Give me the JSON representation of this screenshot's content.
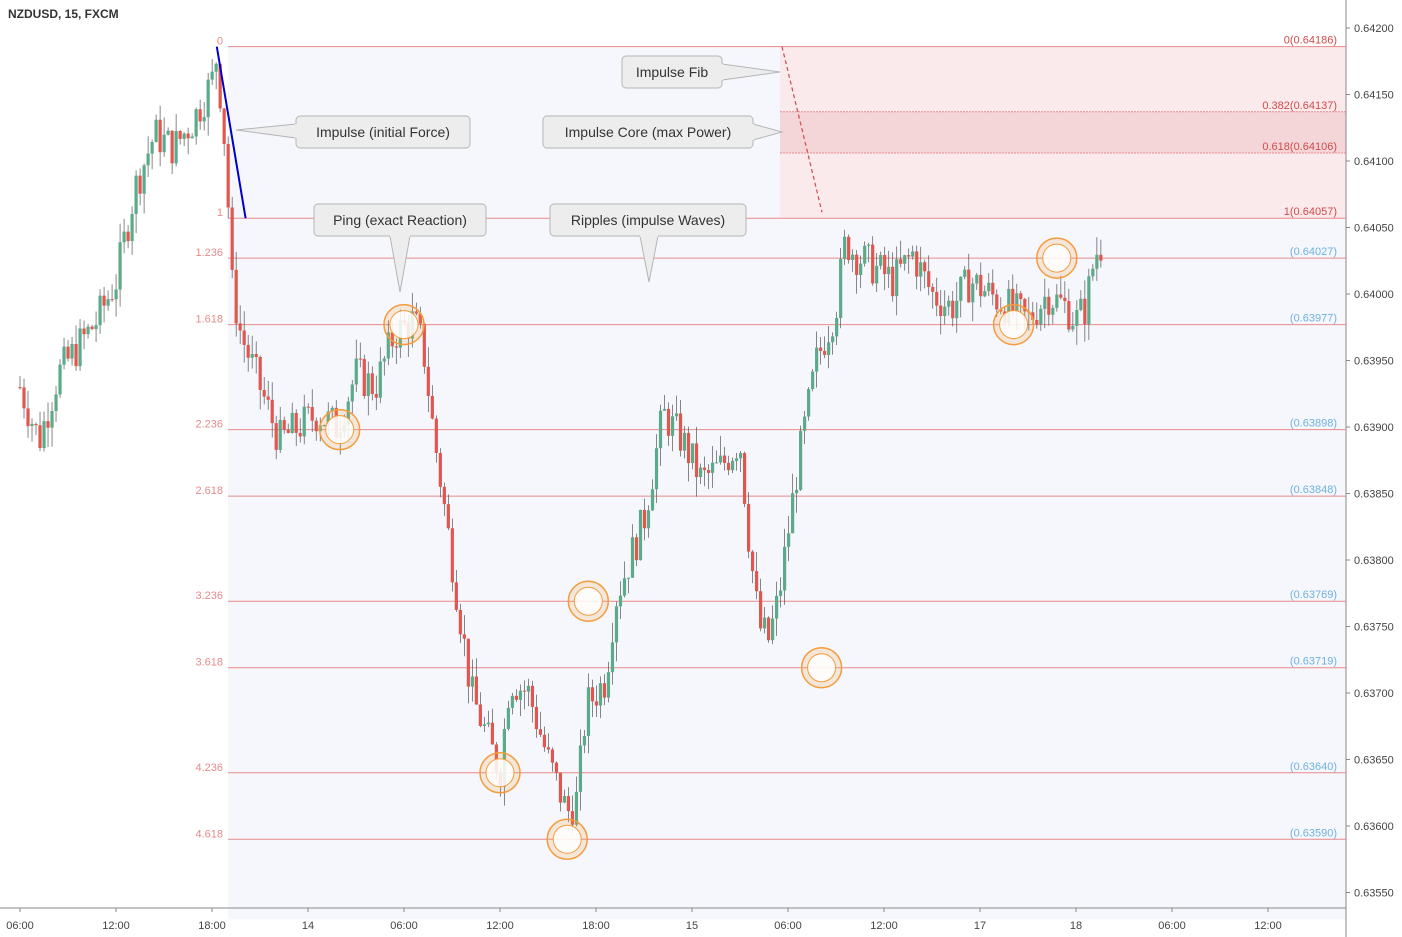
{
  "header": {
    "title": "NZDUSD, 15, FXCM"
  },
  "chart_data": {
    "type": "candlestick",
    "symbol": "NZDUSD",
    "interval": "15",
    "source": "FXCM",
    "ylim": [
      0.6353,
      0.6421
    ],
    "y_ticks": [
      "0.64200",
      "0.64150",
      "0.64100",
      "0.64050",
      "0.64000",
      "0.63950",
      "0.63900",
      "0.63850",
      "0.63800",
      "0.63750",
      "0.63700",
      "0.63650",
      "0.63600",
      "0.63550"
    ],
    "x_ticks": [
      {
        "label": "06:00",
        "t": 0
      },
      {
        "label": "12:00",
        "t": 1
      },
      {
        "label": "18:00",
        "t": 2
      },
      {
        "label": "14",
        "t": 3
      },
      {
        "label": "06:00",
        "t": 4
      },
      {
        "label": "12:00",
        "t": 5
      },
      {
        "label": "18:00",
        "t": 6
      },
      {
        "label": "15",
        "t": 7
      },
      {
        "label": "06:00",
        "t": 8
      },
      {
        "label": "12:00",
        "t": 9
      },
      {
        "label": "17",
        "t": 10
      },
      {
        "label": "18",
        "t": 11
      },
      {
        "label": "06:00",
        "t": 12
      },
      {
        "label": "12:00",
        "t": 13
      }
    ],
    "series_close": [
      [
        0.0,
        0.6393
      ],
      [
        0.2,
        0.6389
      ],
      [
        0.4,
        0.6394
      ],
      [
        0.6,
        0.6396
      ],
      [
        0.8,
        0.6398
      ],
      [
        1.0,
        0.6401
      ],
      [
        1.2,
        0.6408
      ],
      [
        1.4,
        0.6412
      ],
      [
        1.6,
        0.6411
      ],
      [
        1.8,
        0.6413
      ],
      [
        2.0,
        0.6416
      ],
      [
        2.05,
        0.6418
      ],
      [
        2.15,
        0.641
      ],
      [
        2.2,
        0.6401
      ],
      [
        2.3,
        0.6397
      ],
      [
        2.5,
        0.6393
      ],
      [
        2.7,
        0.6389
      ],
      [
        2.9,
        0.639
      ],
      [
        3.1,
        0.6391
      ],
      [
        3.3,
        0.639
      ],
      [
        3.5,
        0.6394
      ],
      [
        3.7,
        0.6393
      ],
      [
        3.9,
        0.6397
      ],
      [
        4.1,
        0.6398
      ],
      [
        4.2,
        0.6396
      ],
      [
        4.3,
        0.639
      ],
      [
        4.5,
        0.638
      ],
      [
        4.7,
        0.637
      ],
      [
        4.9,
        0.6366
      ],
      [
        5.0,
        0.6364
      ],
      [
        5.1,
        0.6371
      ],
      [
        5.3,
        0.637
      ],
      [
        5.5,
        0.6365
      ],
      [
        5.7,
        0.6361
      ],
      [
        5.8,
        0.6362
      ],
      [
        5.9,
        0.6369
      ],
      [
        6.1,
        0.6371
      ],
      [
        6.2,
        0.6377
      ],
      [
        6.4,
        0.6381
      ],
      [
        6.5,
        0.6383
      ],
      [
        6.7,
        0.6391
      ],
      [
        6.9,
        0.6389
      ],
      [
        7.1,
        0.6386
      ],
      [
        7.3,
        0.6387
      ],
      [
        7.5,
        0.6389
      ],
      [
        7.6,
        0.6381
      ],
      [
        7.7,
        0.6375
      ],
      [
        7.8,
        0.6374
      ],
      [
        7.9,
        0.6377
      ],
      [
        8.1,
        0.6387
      ],
      [
        8.3,
        0.6395
      ],
      [
        8.5,
        0.6399
      ],
      [
        8.6,
        0.6404
      ],
      [
        8.7,
        0.6403
      ],
      [
        8.9,
        0.6402
      ],
      [
        9.1,
        0.6401
      ],
      [
        9.3,
        0.6403
      ],
      [
        9.5,
        0.64
      ],
      [
        9.7,
        0.6399
      ],
      [
        9.9,
        0.6401
      ],
      [
        10.1,
        0.64
      ],
      [
        10.3,
        0.6399
      ],
      [
        10.5,
        0.6398
      ],
      [
        10.7,
        0.64
      ],
      [
        10.9,
        0.6399
      ],
      [
        11.0,
        0.6398
      ],
      [
        11.1,
        0.6399
      ],
      [
        11.2,
        0.6403
      ],
      [
        11.3,
        0.6404
      ]
    ],
    "fib_levels": [
      {
        "ratio": "0",
        "price_label": "0(0.64186)",
        "price": 0.64186
      },
      {
        "ratio": "0.382",
        "price_label": "0.382(0.64137)",
        "price": 0.64137
      },
      {
        "ratio": "0.618",
        "price_label": "0.618(0.64106)",
        "price": 0.64106
      },
      {
        "ratio": "1",
        "price_label": "1(0.64057)",
        "price": 0.64057
      },
      {
        "ratio": "1.236",
        "price_label": "(0.64027)",
        "price": 0.64027
      },
      {
        "ratio": "1.618",
        "price_label": "(0.63977)",
        "price": 0.63977
      },
      {
        "ratio": "2.236",
        "price_label": "(0.63898)",
        "price": 0.63898
      },
      {
        "ratio": "2.618",
        "price_label": "(0.63848)",
        "price": 0.63848
      },
      {
        "ratio": "3.236",
        "price_label": "(0.63769)",
        "price": 0.63769
      },
      {
        "ratio": "3.618",
        "price_label": "(0.63719)",
        "price": 0.63719
      },
      {
        "ratio": "4.236",
        "price_label": "(0.63640)",
        "price": 0.6364
      },
      {
        "ratio": "4.618",
        "price_label": "(0.63590)",
        "price": 0.6359
      }
    ],
    "reaction_points": [
      {
        "t": 3.33,
        "price": 0.63898
      },
      {
        "t": 4.0,
        "price": 0.63977
      },
      {
        "t": 5.0,
        "price": 0.6364
      },
      {
        "t": 5.7,
        "price": 0.6359
      },
      {
        "t": 5.92,
        "price": 0.63769
      },
      {
        "t": 8.35,
        "price": 0.63719
      },
      {
        "t": 10.35,
        "price": 0.63977
      },
      {
        "t": 10.8,
        "price": 0.64027
      }
    ],
    "annotations": [
      {
        "text": "Impulse (initial Force)"
      },
      {
        "text": "Ping (exact Reaction)"
      },
      {
        "text": "Ripples (impulse Waves)"
      },
      {
        "text": "Impulse Fib"
      },
      {
        "text": "Impulse Core (max Power)"
      }
    ],
    "colors": {
      "up": "#5bab8a",
      "down": "#e0574f",
      "fib_line": "#e88a8a",
      "impulse_line": "#0000cc",
      "circle": "#f39c3d",
      "zone": "#f4d5d8"
    }
  }
}
